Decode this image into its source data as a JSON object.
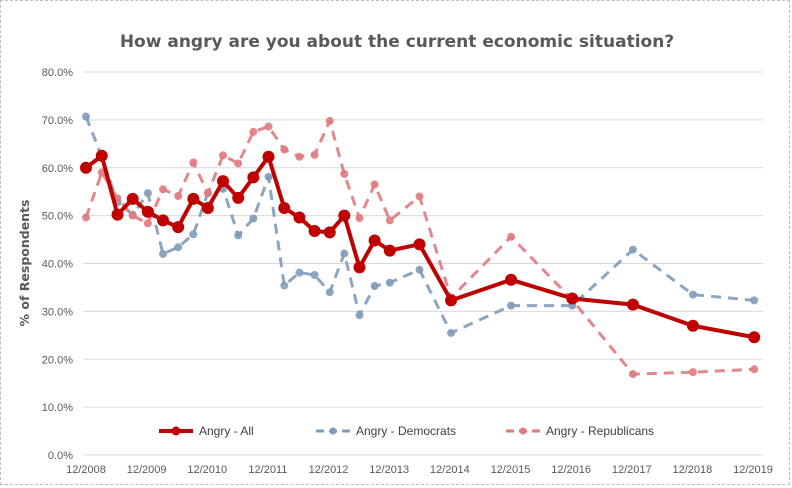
{
  "chart_data": {
    "type": "line",
    "title": "How angry are you about the current economic situation?",
    "xlabel": "",
    "ylabel": "% of Respondents",
    "ylim": [
      0,
      80
    ],
    "yticks": [
      0,
      10,
      20,
      30,
      40,
      50,
      60,
      70,
      80
    ],
    "ytick_labels": [
      "0.0%",
      "10.0%",
      "20.0%",
      "30.0%",
      "40.0%",
      "50.0%",
      "60.0%",
      "70.0%",
      "80.0%"
    ],
    "xlim": [
      2008.92,
      2019.92
    ],
    "xticks": [
      2008.92,
      2009.92,
      2010.92,
      2011.92,
      2012.92,
      2013.92,
      2014.92,
      2015.92,
      2016.92,
      2017.92,
      2018.92,
      2019.92
    ],
    "xtick_labels": [
      "12/2008",
      "12/2009",
      "12/2010",
      "12/2011",
      "12/2012",
      "12/2013",
      "12/2014",
      "12/2015",
      "12/2016",
      "12/2017",
      "12/2018",
      "12/2019"
    ],
    "grid": "horizontal",
    "legend_position": "bottom",
    "x": [
      2008.92,
      2009.18,
      2009.44,
      2009.69,
      2009.94,
      2010.19,
      2010.44,
      2010.69,
      2010.93,
      2011.18,
      2011.43,
      2011.68,
      2011.93,
      2012.19,
      2012.44,
      2012.69,
      2012.94,
      2013.18,
      2013.43,
      2013.68,
      2013.93,
      2014.42,
      2014.94,
      2015.93,
      2016.94,
      2017.94,
      2018.93,
      2019.94
    ],
    "series": [
      {
        "name": "Angry - All",
        "color": "#C00000",
        "style": "solid",
        "values": [
          60.0,
          62.5,
          50.2,
          53.5,
          50.8,
          49.0,
          47.6,
          53.5,
          51.6,
          57.2,
          53.7,
          58.0,
          62.3,
          51.6,
          49.6,
          46.8,
          46.5,
          50.0,
          39.2,
          44.8,
          42.7,
          44.0,
          32.3,
          36.6,
          32.7,
          31.4,
          27.0,
          24.6
        ]
      },
      {
        "name": "Angry - Democrats",
        "color": "#7F9CBA",
        "style": "dashed",
        "values": [
          70.7,
          62.3,
          52.8,
          50.2,
          54.7,
          42.0,
          43.4,
          46.1,
          54.7,
          55.6,
          45.9,
          49.4,
          58.1,
          35.4,
          38.1,
          37.6,
          34.0,
          42.1,
          29.2,
          35.3,
          36.0,
          38.7,
          25.5,
          31.2,
          31.2,
          42.9,
          33.5,
          32.3
        ]
      },
      {
        "name": "Angry - Republicans",
        "color": "#E07A7F",
        "style": "dashed",
        "values": [
          49.6,
          59.0,
          53.6,
          50.0,
          48.4,
          55.5,
          54.1,
          61.1,
          54.7,
          62.6,
          60.9,
          67.5,
          68.6,
          63.8,
          62.3,
          62.7,
          69.8,
          58.7,
          49.5,
          56.5,
          49.0,
          54.0,
          32.8,
          45.6,
          32.4,
          16.9,
          17.3,
          17.9
        ]
      }
    ]
  }
}
